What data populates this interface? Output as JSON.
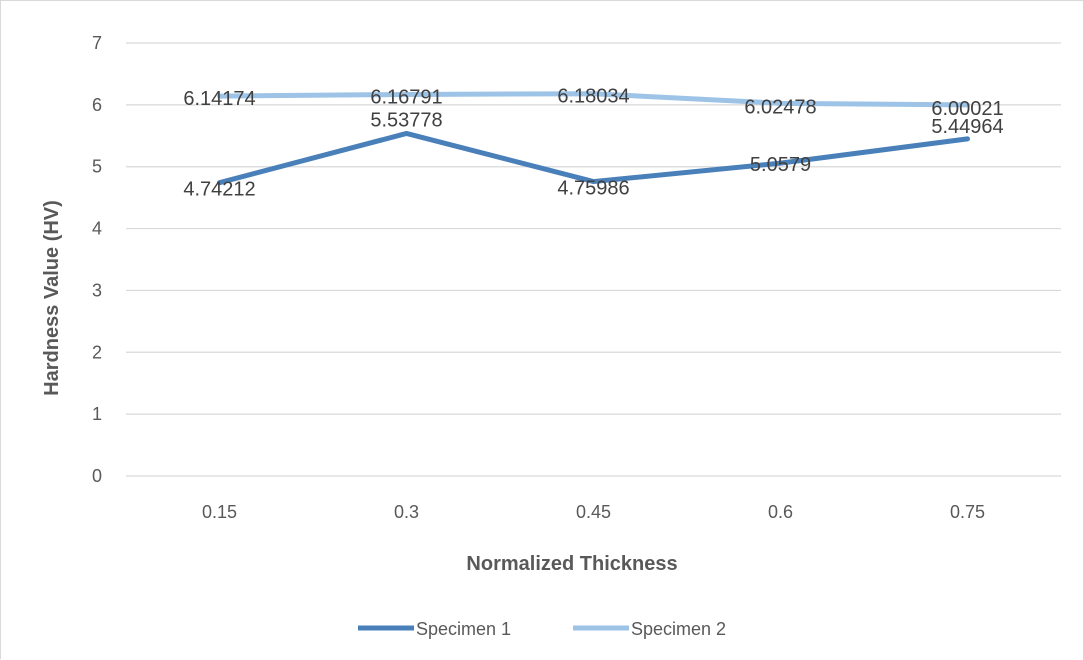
{
  "chart_data": {
    "type": "line",
    "title": "",
    "xlabel": "Normalized Thickness",
    "ylabel": "Hardness Value (HV)",
    "categories": [
      "0.15",
      "0.3",
      "0.45",
      "0.6",
      "0.75"
    ],
    "ylim": [
      0,
      7
    ],
    "yticks": [
      "0",
      "1",
      "2",
      "3",
      "4",
      "5",
      "6",
      "7"
    ],
    "grid": true,
    "legend_position": "bottom",
    "series": [
      {
        "name": "Specimen 1",
        "color": "#4a80b9",
        "values": [
          4.74212,
          5.53778,
          4.75986,
          5.0579,
          5.44964
        ],
        "labels": [
          "4.74212",
          "5.53778",
          "4.75986",
          "5.0579",
          "5.44964"
        ]
      },
      {
        "name": "Specimen 2",
        "color": "#9dc3e6",
        "values": [
          6.14174,
          6.16791,
          6.18034,
          6.02478,
          6.00021
        ],
        "labels": [
          "6.14174",
          "6.16791",
          "6.18034",
          "6.02478",
          "6.00021"
        ]
      }
    ]
  }
}
